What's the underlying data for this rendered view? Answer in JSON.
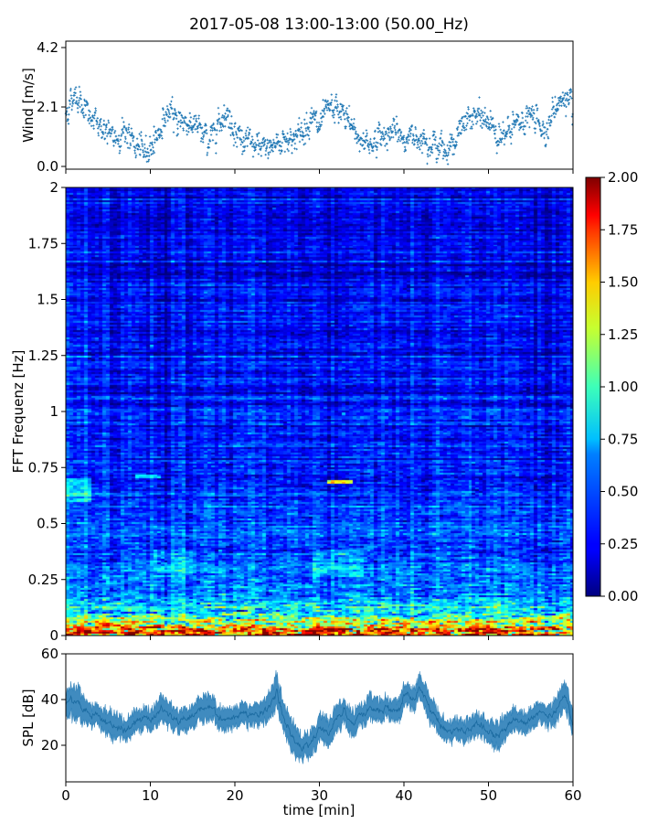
{
  "chart_data": [
    {
      "type": "scatter",
      "panel": "wind",
      "title": "2017-05-08 13:00-13:00 (50.00_Hz)",
      "ylabel": "Wind [m/s]",
      "xlim": [
        0,
        60
      ],
      "ylim": [
        0.0,
        4.2
      ],
      "yticks": [
        "0.0",
        "2.1",
        "4.2"
      ],
      "color": "#1f77b4",
      "profile": {
        "x": [
          0,
          1,
          2,
          3,
          4,
          5,
          6,
          7,
          8,
          9,
          10,
          11,
          12,
          13,
          14,
          15,
          16,
          17,
          18,
          19,
          20,
          21,
          22,
          23,
          24,
          25,
          26,
          27,
          28,
          29,
          30,
          31,
          32,
          33,
          34,
          35,
          36,
          37,
          38,
          39,
          40,
          41,
          42,
          43,
          44,
          45,
          46,
          47,
          48,
          49,
          50,
          51,
          52,
          53,
          54,
          55,
          56,
          57,
          58,
          59,
          60
        ],
        "y": [
          1.8,
          2.6,
          2.2,
          1.6,
          1.5,
          1.1,
          1.0,
          1.3,
          0.8,
          0.5,
          0.7,
          1.2,
          1.9,
          1.7,
          1.6,
          1.5,
          1.2,
          0.9,
          1.6,
          1.9,
          1.3,
          0.9,
          0.8,
          0.6,
          0.7,
          0.8,
          1.0,
          1.0,
          1.2,
          1.8,
          1.3,
          2.0,
          2.0,
          1.8,
          1.3,
          0.9,
          0.8,
          1.0,
          1.2,
          1.2,
          1.0,
          1.0,
          1.1,
          0.9,
          0.7,
          0.6,
          0.9,
          1.4,
          1.8,
          1.7,
          1.6,
          1.2,
          1.0,
          1.4,
          1.6,
          1.8,
          1.5,
          1.3,
          2.2,
          2.4,
          1.9
        ]
      }
    },
    {
      "type": "heatmap",
      "panel": "spectrogram",
      "ylabel": "FFT Frequenz [Hz]",
      "xlim": [
        0,
        60
      ],
      "ylim": [
        0,
        2
      ],
      "yticks": [
        "0",
        "0.25",
        "0.5",
        "0.75",
        "1",
        "1.25",
        "1.5",
        "1.75",
        "2"
      ],
      "colormap": "jet",
      "colorbar": {
        "min": 0.0,
        "max": 2.0,
        "ticks": [
          "0.00",
          "0.25",
          "0.50",
          "0.75",
          "1.00",
          "1.25",
          "1.50",
          "1.75",
          "2.00"
        ]
      },
      "mean_intensity_by_frequency": {
        "freq": [
          0.0,
          0.03,
          0.06,
          0.1,
          0.15,
          0.2,
          0.3,
          0.4,
          0.6,
          0.8,
          1.0,
          1.5,
          2.0
        ],
        "value": [
          1.7,
          1.45,
          1.1,
          0.8,
          0.65,
          0.5,
          0.45,
          0.4,
          0.33,
          0.3,
          0.27,
          0.22,
          0.2
        ]
      }
    },
    {
      "type": "area",
      "panel": "spl",
      "ylabel": "SPL [dB]",
      "xlabel": "time [min]",
      "xlim": [
        0,
        60
      ],
      "ylim": [
        4,
        60
      ],
      "yticks": [
        "20",
        "40",
        "60"
      ],
      "xticks": [
        "0",
        "10",
        "20",
        "30",
        "40",
        "50",
        "60"
      ],
      "color": "#1f77b4",
      "profile": {
        "x": [
          0,
          1,
          2,
          3,
          4,
          5,
          6,
          7,
          8,
          9,
          10,
          11,
          12,
          13,
          14,
          15,
          16,
          17,
          18,
          19,
          20,
          21,
          22,
          23,
          24,
          25,
          26,
          27,
          28,
          29,
          30,
          31,
          32,
          33,
          34,
          35,
          36,
          37,
          38,
          39,
          40,
          41,
          42,
          43,
          44,
          45,
          46,
          47,
          48,
          49,
          50,
          51,
          52,
          53,
          54,
          55,
          56,
          57,
          58,
          59,
          60
        ],
        "y": [
          38,
          40,
          37,
          33,
          33,
          30,
          27,
          26,
          29,
          31,
          32,
          35,
          34,
          31,
          30,
          31,
          36,
          37,
          33,
          31,
          32,
          33,
          33,
          34,
          37,
          42,
          30,
          22,
          18,
          22,
          28,
          25,
          32,
          35,
          30,
          34,
          36,
          35,
          35,
          34,
          41,
          40,
          44,
          37,
          30,
          27,
          27,
          26,
          28,
          29,
          26,
          24,
          27,
          32,
          30,
          33,
          35,
          33,
          36,
          42,
          30
        ],
        "band": [
          6,
          8,
          6,
          5,
          5,
          6,
          6,
          5,
          5,
          5,
          5,
          6,
          6,
          5,
          5,
          5,
          6,
          6,
          5,
          5,
          5,
          5,
          5,
          5,
          6,
          8,
          7,
          7,
          6,
          6,
          6,
          6,
          6,
          6,
          6,
          5,
          6,
          5,
          5,
          5,
          5,
          5,
          6,
          6,
          5,
          5,
          5,
          5,
          5,
          5,
          5,
          6,
          6,
          5,
          5,
          5,
          5,
          5,
          6,
          7,
          6
        ]
      }
    }
  ]
}
